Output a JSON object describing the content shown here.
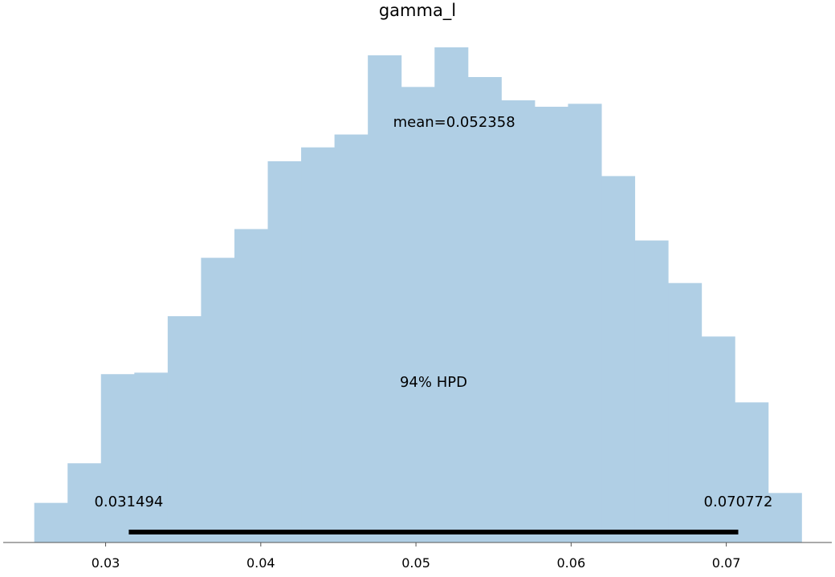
{
  "chart_data": {
    "type": "bar",
    "title": "gamma_l",
    "xlabel": "",
    "ylabel": "",
    "grid": false,
    "legend": "none",
    "bar_color": "#b0cfe5",
    "hpd_color": "#000000",
    "xlim": [
      0.0234,
      0.0768
    ],
    "ylim": [
      0,
      1
    ],
    "bin_edges": [
      0.0254,
      0.02755,
      0.0297,
      0.03185,
      0.034,
      0.03615,
      0.0383,
      0.04045,
      0.0426,
      0.04475,
      0.0469,
      0.04905,
      0.0512,
      0.05335,
      0.0555,
      0.05765,
      0.0598,
      0.06195,
      0.0641,
      0.06625,
      0.0684,
      0.07055,
      0.0727,
      0.07485
    ],
    "values": [
      0.08,
      0.16,
      0.34,
      0.343,
      0.457,
      0.575,
      0.633,
      0.77,
      0.798,
      0.824,
      0.984,
      0.92,
      1.0,
      0.94,
      0.893,
      0.88,
      0.886,
      0.74,
      0.61,
      0.524,
      0.416,
      0.283,
      0.1
    ],
    "xticks": [
      0.03,
      0.04,
      0.05,
      0.06,
      0.07
    ],
    "xtick_labels": [
      "0.03",
      "0.04",
      "0.05",
      "0.06",
      "0.07"
    ],
    "mean_label": "mean=0.052358",
    "hpd": {
      "label": "94% HPD",
      "low": 0.031494,
      "high": 0.070772,
      "low_label": "0.031494",
      "high_label": "0.070772"
    }
  }
}
